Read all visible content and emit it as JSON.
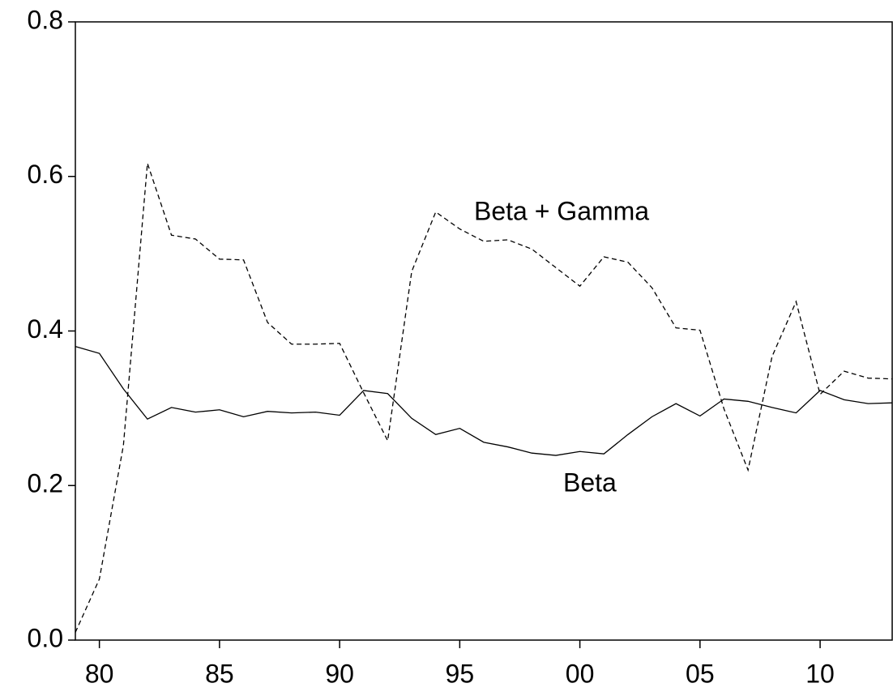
{
  "chart_data": {
    "type": "line",
    "x": [
      1979,
      1980,
      1981,
      1982,
      1983,
      1984,
      1985,
      1986,
      1987,
      1988,
      1989,
      1990,
      1991,
      1992,
      1993,
      1994,
      1995,
      1996,
      1997,
      1998,
      1999,
      2000,
      2001,
      2002,
      2003,
      2004,
      2005,
      2006,
      2007,
      2008,
      2009,
      2010,
      2011,
      2012,
      2013
    ],
    "series": [
      {
        "name": "Beta + Gamma",
        "color": "#000000",
        "line_style": "dashed",
        "values": [
          0.01,
          0.079,
          0.252,
          0.617,
          0.524,
          0.519,
          0.493,
          0.492,
          0.411,
          0.383,
          0.383,
          0.384,
          0.32,
          0.258,
          0.477,
          0.554,
          0.532,
          0.516,
          0.518,
          0.506,
          0.482,
          0.458,
          0.496,
          0.489,
          0.456,
          0.404,
          0.401,
          0.299,
          0.22,
          0.367,
          0.438,
          0.318,
          0.348,
          0.339,
          0.338
        ]
      },
      {
        "name": "Beta",
        "color": "#000000",
        "line_style": "solid",
        "values": [
          0.38,
          0.371,
          0.325,
          0.286,
          0.301,
          0.295,
          0.298,
          0.289,
          0.296,
          0.294,
          0.295,
          0.291,
          0.323,
          0.319,
          0.287,
          0.266,
          0.274,
          0.256,
          0.25,
          0.242,
          0.239,
          0.244,
          0.241,
          0.266,
          0.289,
          0.306,
          0.29,
          0.312,
          0.309,
          0.301,
          0.294,
          0.323,
          0.311,
          0.306,
          0.307
        ]
      }
    ],
    "xlim": [
      1979,
      2013
    ],
    "xticks": [
      {
        "value": 1980,
        "label": "80"
      },
      {
        "value": 1985,
        "label": "85"
      },
      {
        "value": 1990,
        "label": "90"
      },
      {
        "value": 1995,
        "label": "95"
      },
      {
        "value": 2000,
        "label": "00"
      },
      {
        "value": 2005,
        "label": "05"
      },
      {
        "value": 2010,
        "label": "10"
      }
    ],
    "ylim": [
      0,
      0.8
    ],
    "yticks": [
      {
        "value": 0,
        "label": "0.0"
      },
      0.2,
      0.4,
      0.6,
      0.8
    ],
    "grid": false
  }
}
